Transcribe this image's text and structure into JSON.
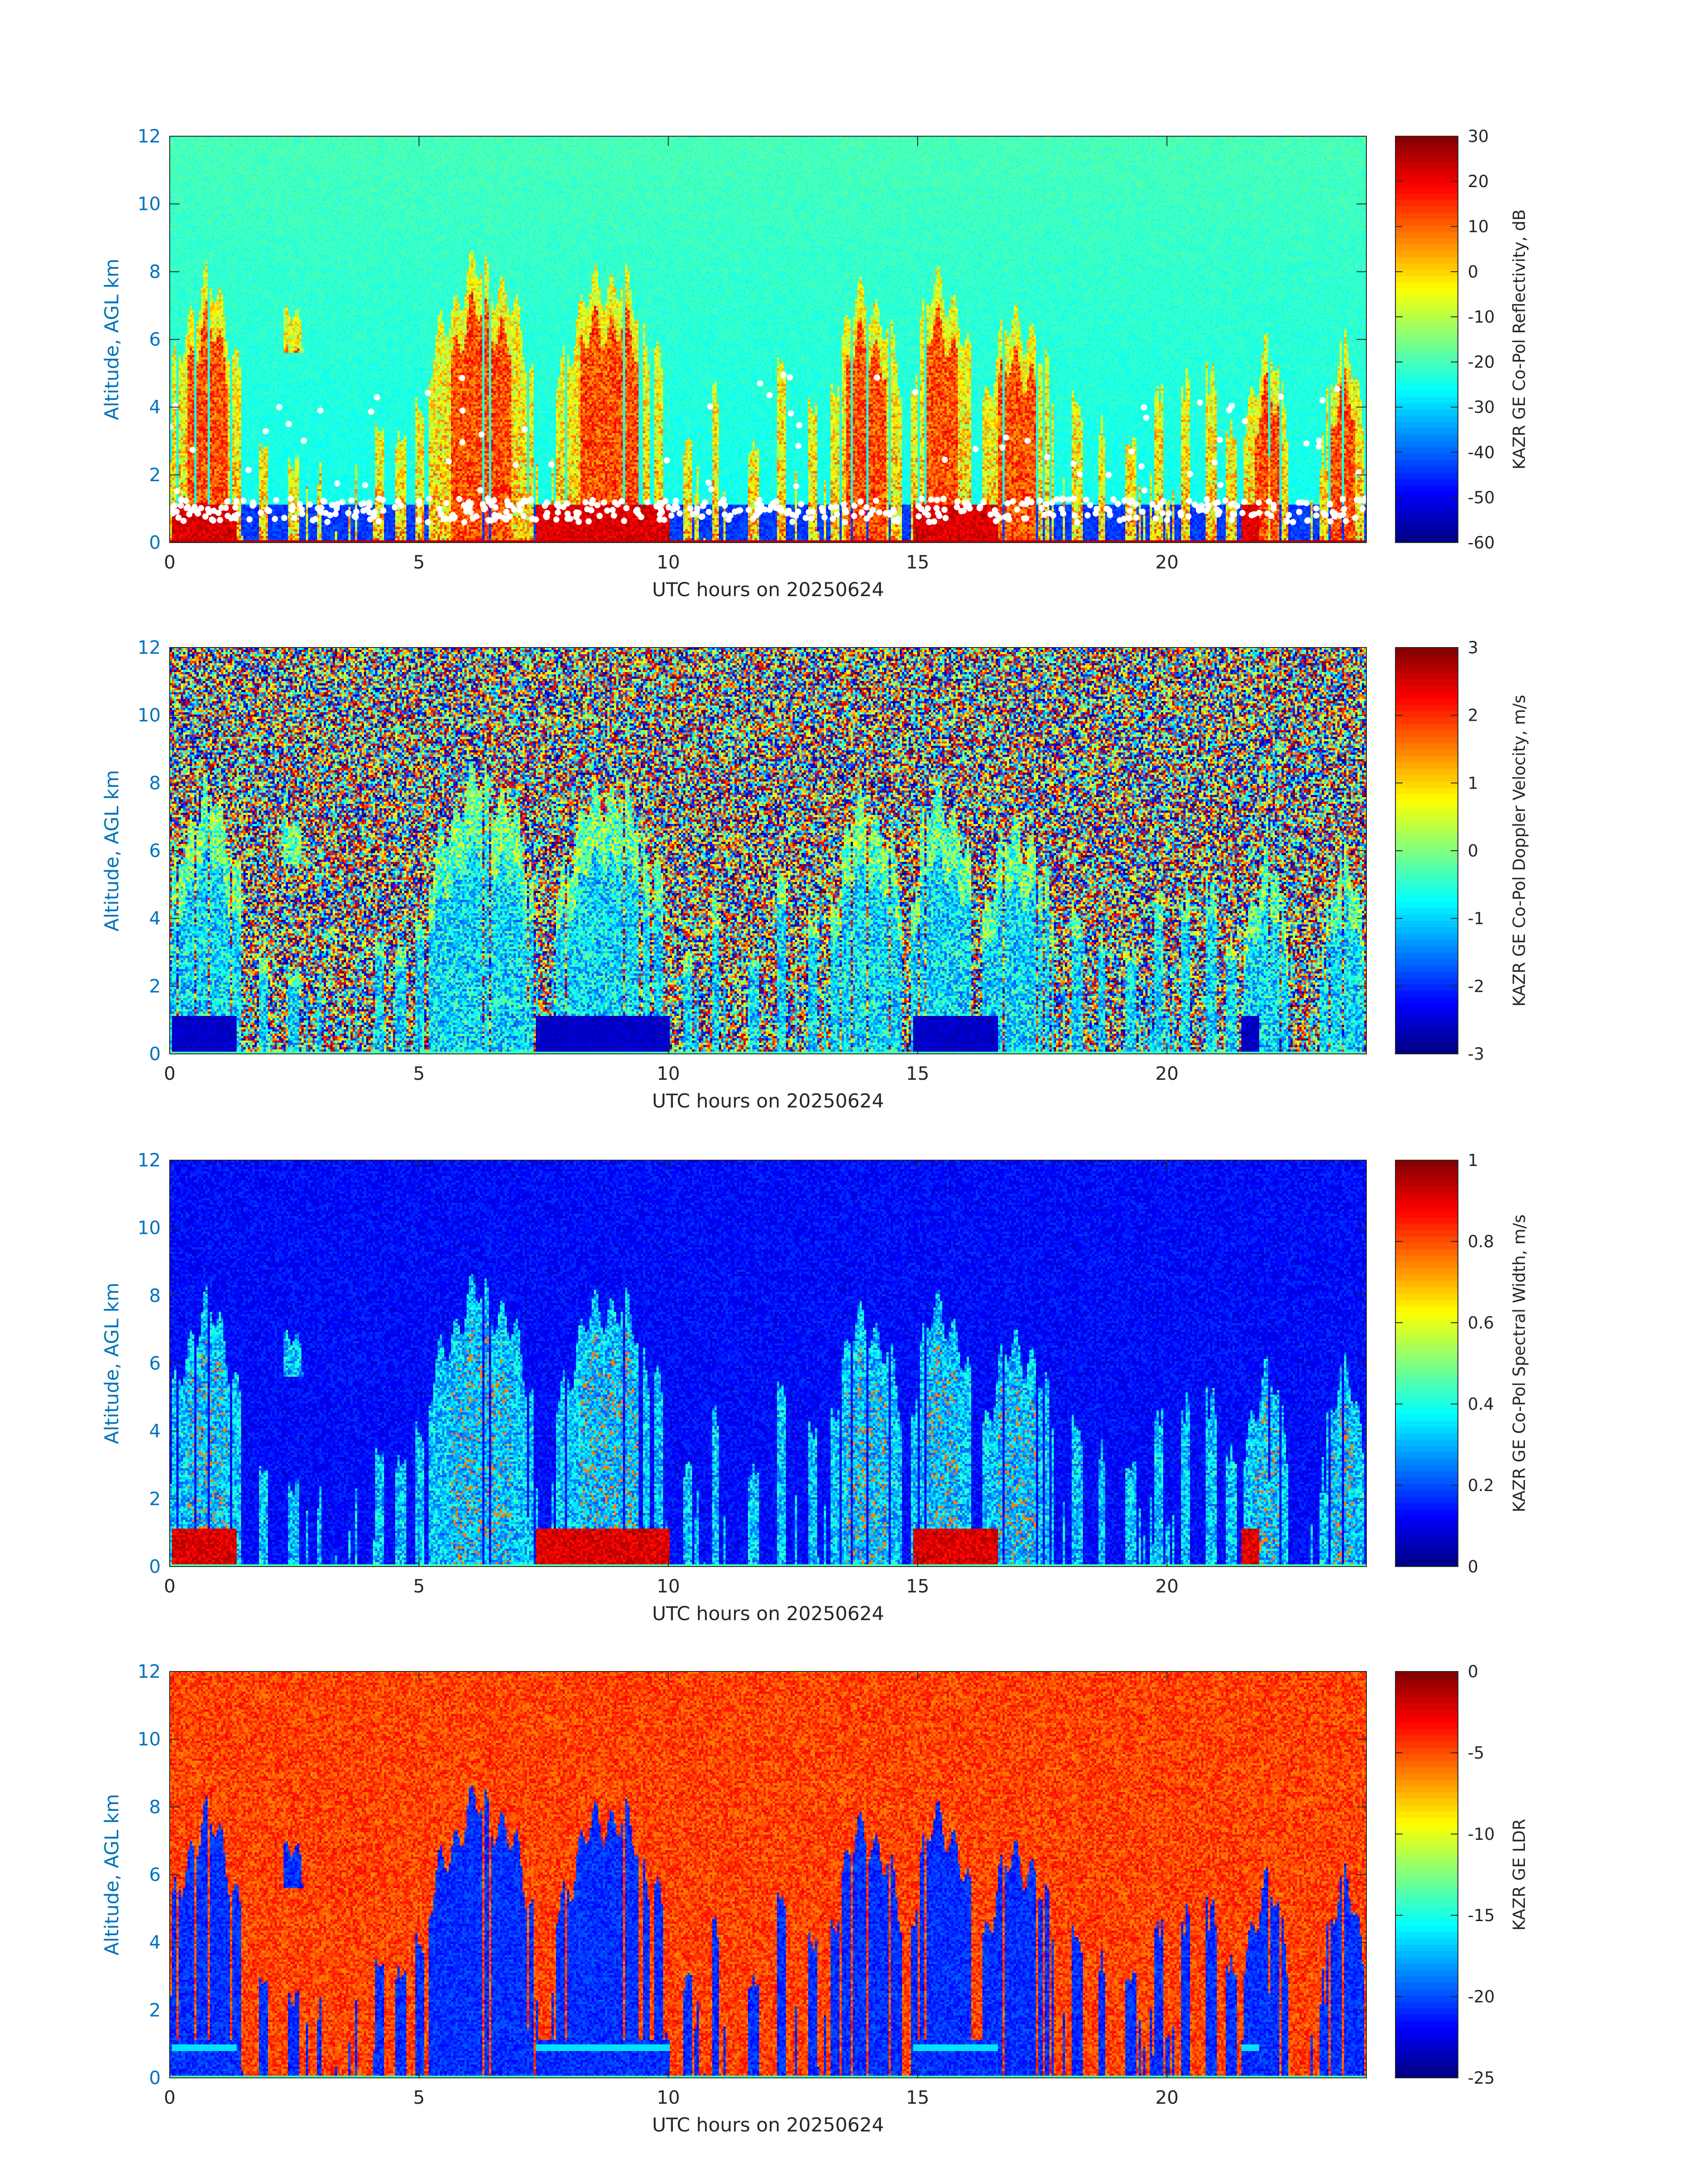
{
  "chart_data": [
    {
      "type": "heatmap",
      "variable": "reflectivity",
      "xlabel": "UTC hours on 20250624",
      "ylabel": "Altitude, AGL km",
      "xlim": [
        0,
        24
      ],
      "ylim": [
        0,
        12
      ],
      "xticks": [
        "0",
        "5",
        "10",
        "15",
        "20"
      ],
      "yticks": [
        "0",
        "2",
        "4",
        "6",
        "8",
        "10",
        "12"
      ],
      "colorbar": {
        "label": "KAZR GE Co-Pol Reflectivity, dB",
        "range": [
          -60,
          30
        ],
        "ticks": [
          "30",
          "20",
          "10",
          "0",
          "-10",
          "-20",
          "-30",
          "-40",
          "-50",
          "-60"
        ],
        "colormap": "jet"
      },
      "grid": false
    },
    {
      "type": "heatmap",
      "variable": "velocity",
      "xlabel": "UTC hours on 20250624",
      "ylabel": "Altitude, AGL km",
      "xlim": [
        0,
        24
      ],
      "ylim": [
        0,
        12
      ],
      "xticks": [
        "0",
        "5",
        "10",
        "15",
        "20"
      ],
      "yticks": [
        "0",
        "2",
        "4",
        "6",
        "8",
        "10",
        "12"
      ],
      "colorbar": {
        "label": "KAZR GE Co-Pol Doppler Velocity, m/s",
        "range": [
          -3,
          3
        ],
        "ticks": [
          "3",
          "2",
          "1",
          "0",
          "-1",
          "-2",
          "-3"
        ],
        "colormap": "jet"
      },
      "grid": false
    },
    {
      "type": "heatmap",
      "variable": "spectral_width",
      "xlabel": "UTC hours on 20250624",
      "ylabel": "Altitude, AGL km",
      "xlim": [
        0,
        24
      ],
      "ylim": [
        0,
        12
      ],
      "xticks": [
        "0",
        "5",
        "10",
        "15",
        "20"
      ],
      "yticks": [
        "0",
        "2",
        "4",
        "6",
        "8",
        "10",
        "12"
      ],
      "colorbar": {
        "label": "KAZR GE Co-Pol Spectral Width, m/s",
        "range": [
          0,
          1
        ],
        "ticks": [
          "1",
          "0.8",
          "0.6",
          "0.4",
          "0.2",
          "0"
        ],
        "colormap": "jet"
      },
      "grid": false
    },
    {
      "type": "heatmap",
      "variable": "ldr",
      "xlabel": "UTC hours on 20250624",
      "ylabel": "Altitude, AGL km",
      "xlim": [
        0,
        24
      ],
      "ylim": [
        0,
        12
      ],
      "xticks": [
        "0",
        "5",
        "10",
        "15",
        "20"
      ],
      "yticks": [
        "0",
        "2",
        "4",
        "6",
        "8",
        "10",
        "12"
      ],
      "colorbar": {
        "label": "KAZR GE LDR",
        "range": [
          -25,
          0
        ],
        "ticks": [
          "0",
          "-5",
          "-10",
          "-15",
          "-20",
          "-25"
        ],
        "colormap": "jet"
      },
      "grid": false
    }
  ],
  "cloud_systems": [
    {
      "t0": 0.05,
      "t1": 1.45,
      "top": 7.5
    },
    {
      "t0": 2.15,
      "t1": 2.8,
      "top": 6.9,
      "base": 5.6
    },
    {
      "t0": 5.2,
      "t1": 7.3,
      "top": 8.0
    },
    {
      "t0": 7.75,
      "t1": 9.9,
      "top": 7.7
    },
    {
      "t0": 13.25,
      "t1": 14.7,
      "top": 7.2
    },
    {
      "t0": 14.85,
      "t1": 16.1,
      "top": 7.6
    },
    {
      "t0": 16.3,
      "t1": 17.75,
      "top": 6.5
    },
    {
      "t0": 21.55,
      "t1": 22.45,
      "top": 5.5
    },
    {
      "t0": 23.1,
      "t1": 23.95,
      "top": 5.6
    }
  ],
  "thin_columns": [
    {
      "t": 1.9,
      "top": 3.2
    },
    {
      "t": 2.5,
      "top": 2.6
    },
    {
      "t": 4.2,
      "top": 3.9
    },
    {
      "t": 4.65,
      "top": 3.4
    },
    {
      "t": 5.0,
      "top": 4.6
    },
    {
      "t": 10.4,
      "top": 3.1
    },
    {
      "t": 10.95,
      "top": 4.9
    },
    {
      "t": 11.7,
      "top": 3.3
    },
    {
      "t": 12.3,
      "top": 5.9
    },
    {
      "t": 12.9,
      "top": 4.6
    },
    {
      "t": 17.05,
      "top": 6.2
    },
    {
      "t": 18.2,
      "top": 4.5
    },
    {
      "t": 18.7,
      "top": 3.8
    },
    {
      "t": 19.3,
      "top": 3.5
    },
    {
      "t": 19.85,
      "top": 4.9
    },
    {
      "t": 20.4,
      "top": 5.2
    },
    {
      "t": 20.9,
      "top": 5.4
    },
    {
      "t": 21.3,
      "top": 3.7
    }
  ],
  "rain_periods": [
    {
      "t0": 0.05,
      "t1": 1.35
    },
    {
      "t0": 7.35,
      "t1": 10.05
    },
    {
      "t0": 14.9,
      "t1": 16.6
    },
    {
      "t0": 21.5,
      "t1": 21.85
    }
  ]
}
